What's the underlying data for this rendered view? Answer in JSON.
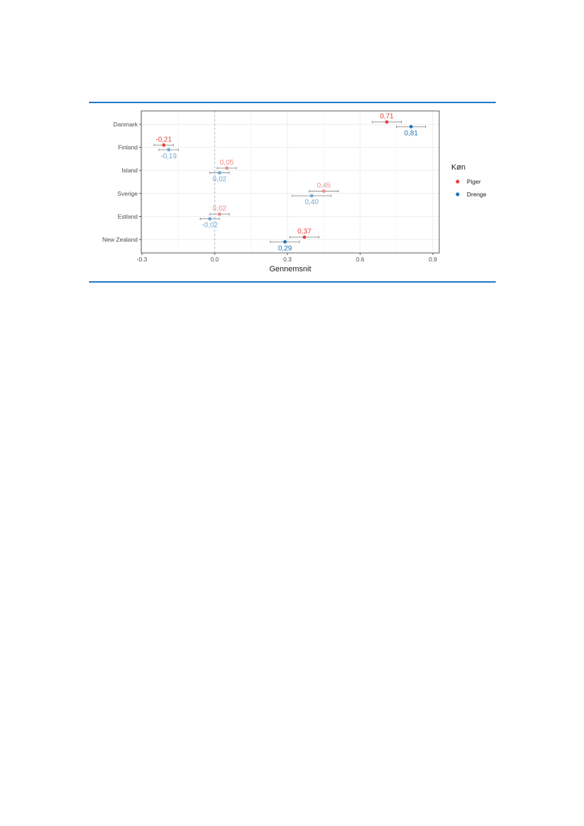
{
  "colors": {
    "rule": "#1f78c8",
    "piger": "#e8413a",
    "drenge": "#1a74c0",
    "piger_faded": "#f08d85",
    "drenge_faded": "#6fa8d6",
    "grid": "#ebebeb",
    "panel_border": "#333333",
    "errorbar": "#8c8c8c",
    "zero_line": "#a9b4d6"
  },
  "chart_data": {
    "type": "scatter",
    "title": "",
    "xlabel": "Gennemsnit",
    "ylabel": "",
    "xlim": [
      -0.32,
      0.92
    ],
    "x_ticks": [
      -0.3,
      0.0,
      0.3,
      0.6,
      0.9
    ],
    "x_tick_labels": [
      "-0.3",
      "0.0",
      "0.3",
      "0.6",
      "0.9"
    ],
    "categories": [
      "Danmark",
      "Finland",
      "Island",
      "Sverige",
      "Estland",
      "New Zealand"
    ],
    "grid": true,
    "reference_line_x": 0,
    "legend": {
      "title": "Køn",
      "placement": "right"
    },
    "series": [
      {
        "name": "Piger",
        "color_key": "piger",
        "values": [
          0.71,
          -0.21,
          0.05,
          0.45,
          0.02,
          0.37
        ],
        "labels": [
          "0,71",
          "-0,21",
          "0,05",
          "0,45",
          "0,02",
          "0,37"
        ],
        "ci_low": [
          0.65,
          -0.25,
          0.01,
          0.39,
          -0.02,
          0.31
        ],
        "ci_high": [
          0.77,
          -0.17,
          0.09,
          0.51,
          0.06,
          0.43
        ],
        "significant": [
          true,
          true,
          false,
          false,
          false,
          true
        ]
      },
      {
        "name": "Drenge",
        "color_key": "drenge",
        "values": [
          0.81,
          -0.19,
          0.02,
          0.4,
          -0.02,
          0.29
        ],
        "labels": [
          "0,81",
          "-0,19",
          "0,02",
          "0,40",
          "-0,02",
          "0,29"
        ],
        "ci_low": [
          0.75,
          -0.23,
          -0.02,
          0.32,
          -0.06,
          0.23
        ],
        "ci_high": [
          0.87,
          -0.15,
          0.06,
          0.48,
          0.02,
          0.35
        ],
        "significant": [
          true,
          false,
          false,
          false,
          false,
          true
        ]
      }
    ]
  }
}
